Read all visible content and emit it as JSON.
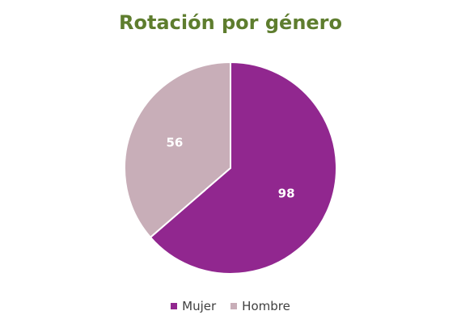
{
  "chart_data": {
    "type": "pie",
    "title": "Rotación por género",
    "categories": [
      "Mujer",
      "Hombre"
    ],
    "values": [
      98,
      56
    ],
    "colors": [
      "#91278f",
      "#c8aeb8"
    ],
    "data_labels": [
      "98",
      "56"
    ],
    "legend_position": "bottom",
    "start_angle_deg": 0,
    "direction": "clockwise"
  },
  "legend": {
    "items": [
      {
        "label": "Mujer",
        "color": "#91278f"
      },
      {
        "label": "Hombre",
        "color": "#c8aeb8"
      }
    ]
  }
}
